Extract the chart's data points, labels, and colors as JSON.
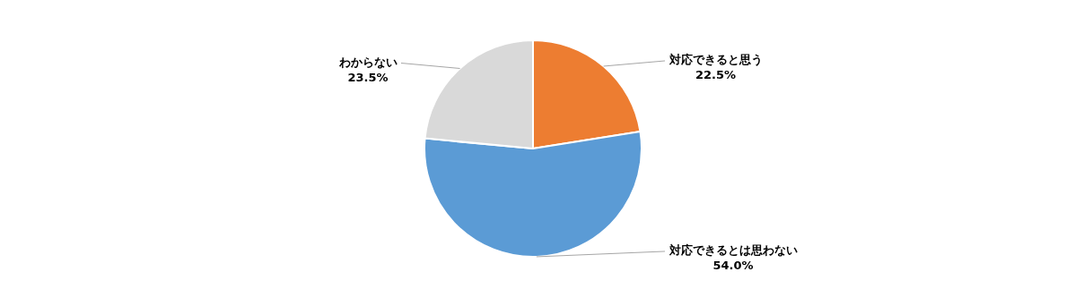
{
  "chart_data": {
    "type": "pie",
    "categories": [
      "対応できると思う",
      "対応できるとは思わない",
      "わからない"
    ],
    "values": [
      22.5,
      54.0,
      23.5
    ],
    "value_labels": [
      "22.5%",
      "54.0%",
      "23.5%"
    ],
    "colors": [
      "#ed7d31",
      "#5b9bd5",
      "#d9d9d9"
    ],
    "legend": false
  }
}
